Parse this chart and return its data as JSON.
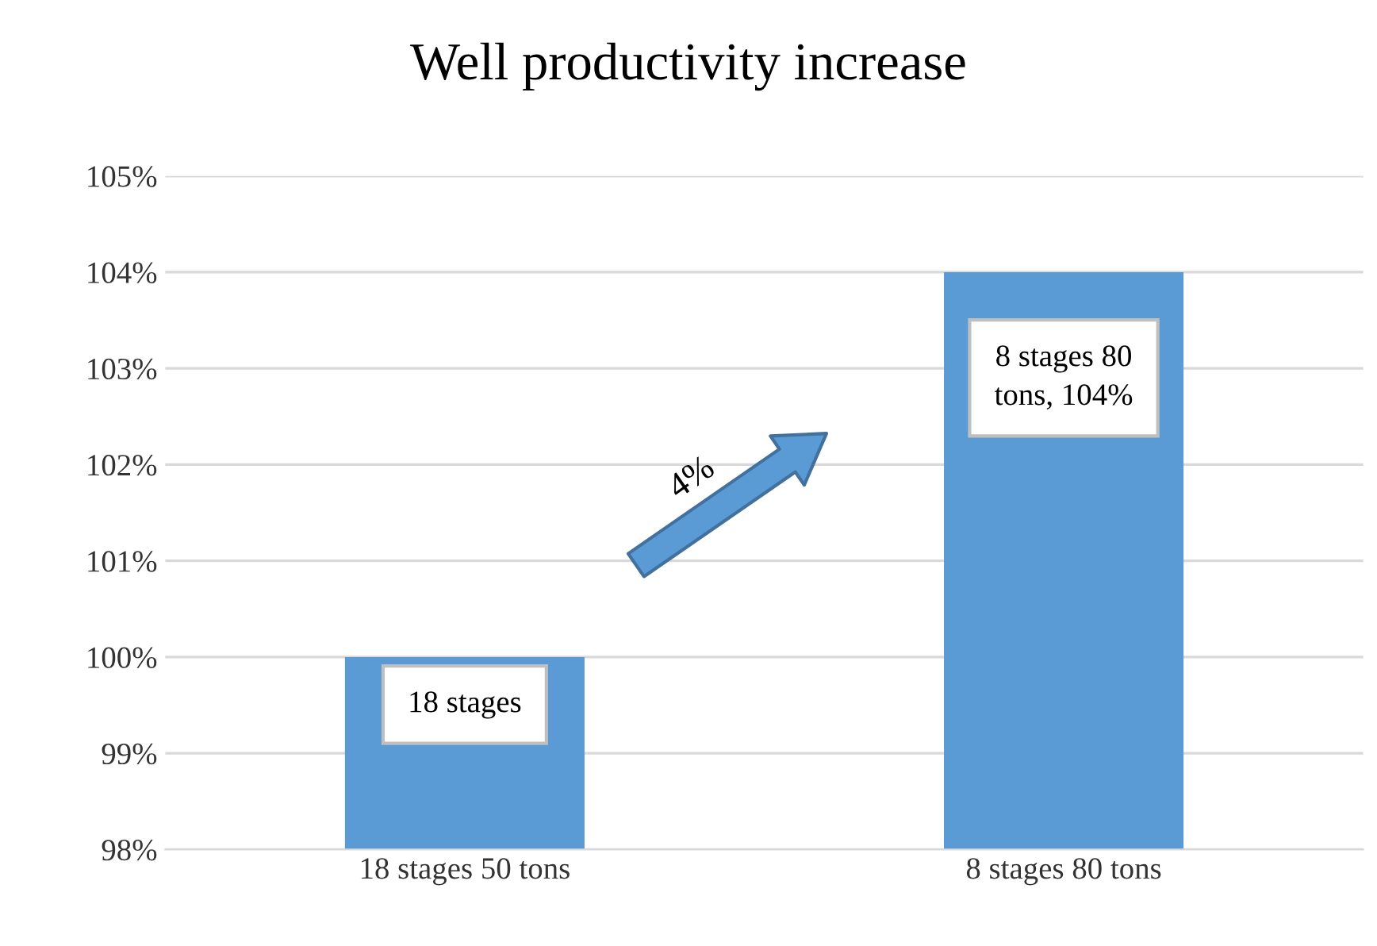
{
  "chart_data": {
    "type": "bar",
    "title": "Well productivity increase",
    "categories": [
      "18 stages 50 tons",
      "8 stages 80 tons"
    ],
    "values": [
      100,
      104
    ],
    "color": "#5b9bd5",
    "ylim": [
      98,
      105
    ],
    "yticks": [
      {
        "value": 98,
        "label": "98%"
      },
      {
        "value": 99,
        "label": "99%"
      },
      {
        "value": 100,
        "label": "100%"
      },
      {
        "value": 101,
        "label": "101%"
      },
      {
        "value": 102,
        "label": "102%"
      },
      {
        "value": 103,
        "label": "103%"
      },
      {
        "value": 104,
        "label": "104%"
      },
      {
        "value": 105,
        "label": "105%"
      }
    ],
    "grid": "y",
    "legend": false,
    "annotations": [
      "18 stages",
      "8 stages 80\ntons, 104%",
      "4%"
    ]
  }
}
